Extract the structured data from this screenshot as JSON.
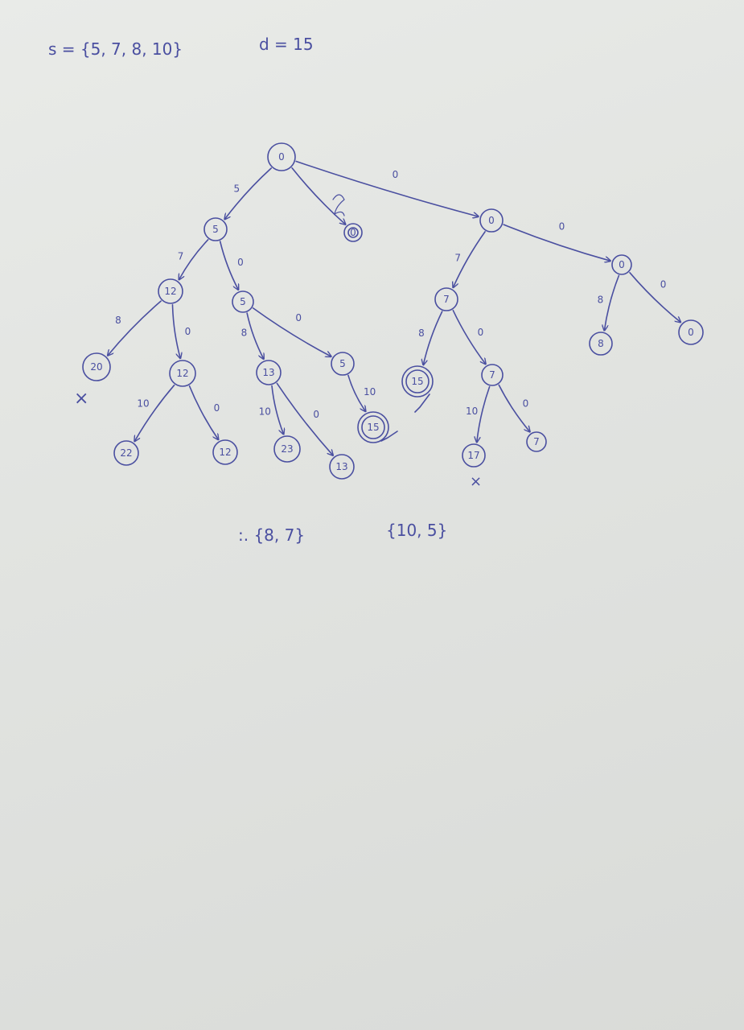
{
  "header": {
    "set": "s = {5, 7, 8, 10}",
    "target": "d = 15"
  },
  "nodes": [
    {
      "id": "n0",
      "label": "0"
    },
    {
      "id": "n1",
      "label": "5"
    },
    {
      "id": "n2",
      "label": "0"
    },
    {
      "id": "n3",
      "label": "0"
    },
    {
      "id": "n4",
      "label": "12"
    },
    {
      "id": "n5",
      "label": "5"
    },
    {
      "id": "n6",
      "label": "20"
    },
    {
      "id": "n7",
      "label": "12"
    },
    {
      "id": "n8",
      "label": "22"
    },
    {
      "id": "n9",
      "label": "12"
    },
    {
      "id": "n10",
      "label": "13"
    },
    {
      "id": "n11",
      "label": "5"
    },
    {
      "id": "n12",
      "label": "23"
    },
    {
      "id": "n13",
      "label": "13"
    },
    {
      "id": "n14",
      "label": "15"
    },
    {
      "id": "n15",
      "label": "7"
    },
    {
      "id": "n16",
      "label": "0"
    },
    {
      "id": "n17",
      "label": "15"
    },
    {
      "id": "n18",
      "label": "7"
    },
    {
      "id": "n19",
      "label": "17"
    },
    {
      "id": "n20",
      "label": "7"
    },
    {
      "id": "n21",
      "label": "8"
    },
    {
      "id": "n22",
      "label": "0"
    }
  ],
  "edges": [
    {
      "from": "n0",
      "to": "n1",
      "label": "5"
    },
    {
      "from": "n0",
      "to": "n2",
      "label": ""
    },
    {
      "from": "n0",
      "to": "n3",
      "label": "0"
    },
    {
      "from": "n1",
      "to": "n4",
      "label": "7"
    },
    {
      "from": "n1",
      "to": "n5",
      "label": "0"
    },
    {
      "from": "n4",
      "to": "n6",
      "label": "8"
    },
    {
      "from": "n4",
      "to": "n7",
      "label": "0"
    },
    {
      "from": "n7",
      "to": "n8",
      "label": "10"
    },
    {
      "from": "n7",
      "to": "n9",
      "label": "0"
    },
    {
      "from": "n5",
      "to": "n10",
      "label": "8"
    },
    {
      "from": "n5",
      "to": "n11",
      "label": "0"
    },
    {
      "from": "n10",
      "to": "n12",
      "label": "10"
    },
    {
      "from": "n10",
      "to": "n13",
      "label": "0"
    },
    {
      "from": "n11",
      "to": "n14",
      "label": "10"
    },
    {
      "from": "n3",
      "to": "n15",
      "label": "7"
    },
    {
      "from": "n3",
      "to": "n16",
      "label": "0"
    },
    {
      "from": "n15",
      "to": "n17",
      "label": "8"
    },
    {
      "from": "n15",
      "to": "n18",
      "label": "0"
    },
    {
      "from": "n18",
      "to": "n19",
      "label": "10"
    },
    {
      "from": "n18",
      "to": "n20",
      "label": "0"
    },
    {
      "from": "n16",
      "to": "n21",
      "label": "8"
    },
    {
      "from": "n16",
      "to": "n22",
      "label": "0"
    }
  ],
  "marks": {
    "rejected": "×"
  },
  "solutions": {
    "first": ":. {8, 7}",
    "second": "{10, 5}"
  }
}
